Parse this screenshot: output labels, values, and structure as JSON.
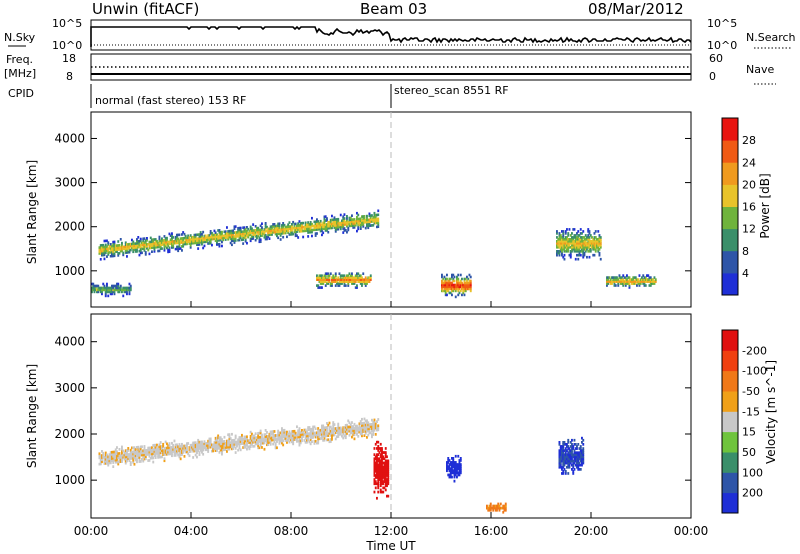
{
  "header": {
    "station": "Unwin (fitACF)",
    "beam": "Beam 03",
    "date": "08/Mar/2012"
  },
  "noise_panel": {
    "left_label": "N.Sky",
    "right_label": "N.Search",
    "left_ticks": [
      "10^5",
      "10^0"
    ],
    "right_ticks": [
      "10^5",
      "10^0"
    ]
  },
  "freq_panel": {
    "left_label_line1": "Freq.",
    "left_label_line2": "[MHz]",
    "right_label": "Nave",
    "left_ticks": [
      "18",
      "8"
    ],
    "right_ticks": [
      "60",
      "0"
    ]
  },
  "cpid_panel": {
    "label": "CPID",
    "modes": [
      {
        "text": "normal (fast stereo) 153 RF",
        "start_hour": 0
      },
      {
        "text": "stereo_scan 8551 RF",
        "start_hour": 12
      }
    ]
  },
  "time_axis": {
    "label": "Time UT",
    "ticks": [
      "00:00",
      "04:00",
      "08:00",
      "12:00",
      "16:00",
      "20:00",
      "00:00"
    ],
    "range_hours": [
      0,
      24
    ]
  },
  "colors": {
    "power_scale": [
      "#1f2fd6",
      "#2e55a8",
      "#3a8f6a",
      "#6fb33c",
      "#e8c32a",
      "#f09a1e",
      "#f05a14",
      "#e81410"
    ],
    "velocity_scale": [
      "#1f2fd6",
      "#2e55a8",
      "#3a8f6a",
      "#6fc43c",
      "#c8c8c8",
      "#f0a018",
      "#f07818",
      "#f04010",
      "#e01010"
    ]
  },
  "chart_data": [
    {
      "type": "heatmap",
      "title": "Power",
      "ylabel": "Slant Range [km]",
      "xlabel": "",
      "ylim": [
        180,
        4600
      ],
      "yticks": [
        "1000",
        "2000",
        "3000",
        "4000"
      ],
      "colorbar": {
        "label": "Power [dB]",
        "ticks": [
          "4",
          "8",
          "12",
          "16",
          "20",
          "24",
          "28"
        ],
        "range": [
          0,
          32
        ]
      },
      "features": [
        {
          "kind": "band",
          "t_start": 0.3,
          "t_end": 11.5,
          "range_start": 1450,
          "range_end": 2150,
          "half_width_km": 130,
          "core_db": 20
        },
        {
          "kind": "patch",
          "t_start": 0.0,
          "t_end": 1.6,
          "range_center": 560,
          "half_width_km": 90,
          "core_db": 14
        },
        {
          "kind": "patch",
          "t_start": 9.0,
          "t_end": 11.2,
          "range_center": 780,
          "half_width_km": 110,
          "core_db": 24
        },
        {
          "kind": "patch",
          "t_start": 14.0,
          "t_end": 15.2,
          "range_center": 650,
          "half_width_km": 160,
          "core_db": 30
        },
        {
          "kind": "patch",
          "t_start": 18.6,
          "t_end": 20.4,
          "range_center": 1600,
          "half_width_km": 220,
          "core_db": 20
        },
        {
          "kind": "patch",
          "t_start": 20.6,
          "t_end": 22.6,
          "range_center": 750,
          "half_width_km": 90,
          "core_db": 22
        }
      ]
    },
    {
      "type": "heatmap",
      "title": "Velocity",
      "ylabel": "Slant Range [km]",
      "xlabel": "Time UT",
      "ylim": [
        180,
        4600
      ],
      "yticks": [
        "1000",
        "2000",
        "3000",
        "4000"
      ],
      "colorbar": {
        "label": "Velocity [m s^-1]",
        "ticks": [
          "200",
          "100",
          "50",
          "15",
          "-15",
          "-50",
          "-100",
          "-200"
        ],
        "range": [
          -250,
          250
        ]
      },
      "features": [
        {
          "kind": "band",
          "t_start": 0.3,
          "t_end": 11.5,
          "range_start": 1450,
          "range_end": 2150,
          "half_width_km": 130,
          "core_ms": -5
        },
        {
          "kind": "patch",
          "t_start": 11.3,
          "t_end": 11.9,
          "range_center": 1200,
          "half_width_km": 380,
          "core_ms": -200
        },
        {
          "kind": "patch",
          "t_start": 14.2,
          "t_end": 14.8,
          "range_center": 1250,
          "half_width_km": 180,
          "core_ms": 200
        },
        {
          "kind": "patch",
          "t_start": 18.7,
          "t_end": 19.7,
          "range_center": 1500,
          "half_width_km": 260,
          "core_ms": 150
        },
        {
          "kind": "patch",
          "t_start": 15.8,
          "t_end": 16.6,
          "range_center": 400,
          "half_width_km": 70,
          "core_ms": -60
        }
      ]
    }
  ]
}
